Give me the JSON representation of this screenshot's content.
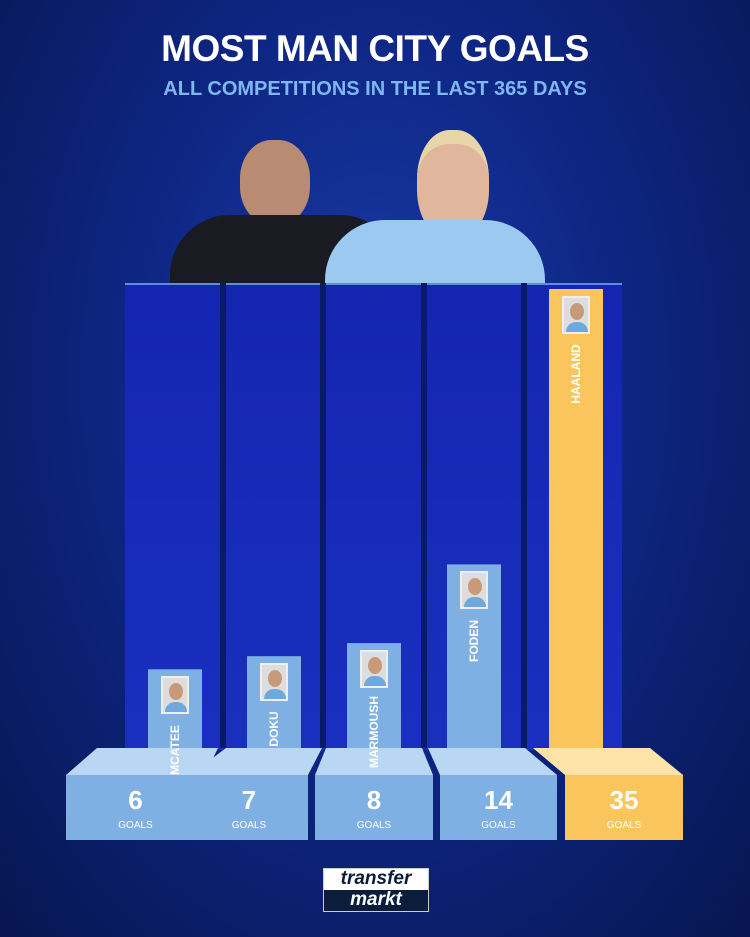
{
  "title": "MOST MAN CITY GOALS",
  "subtitle": "ALL COMPETITIONS IN THE LAST 365 DAYS",
  "logo": {
    "top": "transfer",
    "bottom": "markt"
  },
  "colors": {
    "bar": "#7fb0e4",
    "highlight": "#fbc55d",
    "background": "#0d2580"
  },
  "chart_data": {
    "type": "bar",
    "title": "MOST MAN CITY GOALS",
    "subtitle": "ALL COMPETITIONS IN THE LAST 365 DAYS",
    "categories": [
      "MCATEE",
      "DOKU",
      "MARMOUSH",
      "FODEN",
      "HAALAND"
    ],
    "values": [
      6,
      7,
      8,
      14,
      35
    ],
    "unit": "GOALS",
    "highlight": "HAALAND",
    "ylim": [
      0,
      35
    ],
    "grid": false
  }
}
